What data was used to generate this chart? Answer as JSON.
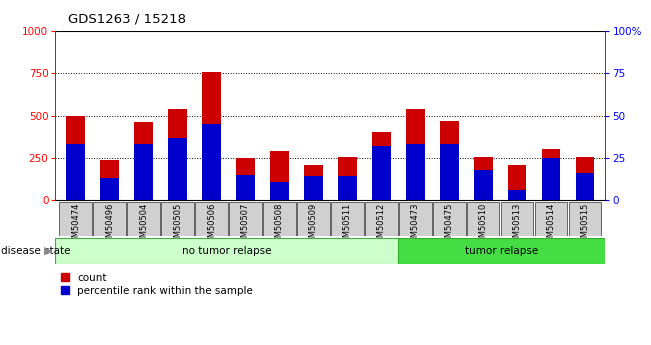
{
  "title": "GDS1263 / 15218",
  "samples": [
    "GSM50474",
    "GSM50496",
    "GSM50504",
    "GSM50505",
    "GSM50506",
    "GSM50507",
    "GSM50508",
    "GSM50509",
    "GSM50511",
    "GSM50512",
    "GSM50473",
    "GSM50475",
    "GSM50510",
    "GSM50513",
    "GSM50514",
    "GSM50515"
  ],
  "count_values": [
    500,
    235,
    460,
    540,
    760,
    250,
    290,
    210,
    255,
    400,
    540,
    470,
    255,
    210,
    305,
    255
  ],
  "percentile_values": [
    33,
    13,
    33,
    37,
    45,
    15,
    11,
    14,
    14,
    32,
    33,
    33,
    18,
    6,
    25,
    16
  ],
  "no_tumor_relapse_count": 10,
  "tumor_relapse_count": 6,
  "left_yticks": [
    0,
    250,
    500,
    750,
    1000
  ],
  "right_yticks": [
    0,
    25,
    50,
    75,
    100
  ],
  "ylim_left": [
    0,
    1000
  ],
  "ylim_right": [
    0,
    100
  ],
  "bar_color_count": "#cc0000",
  "bar_color_pct": "#0000cc",
  "no_tumor_color": "#ccffcc",
  "tumor_color": "#44dd44",
  "bg_gray": "#d0d0d0",
  "bar_width": 0.55
}
